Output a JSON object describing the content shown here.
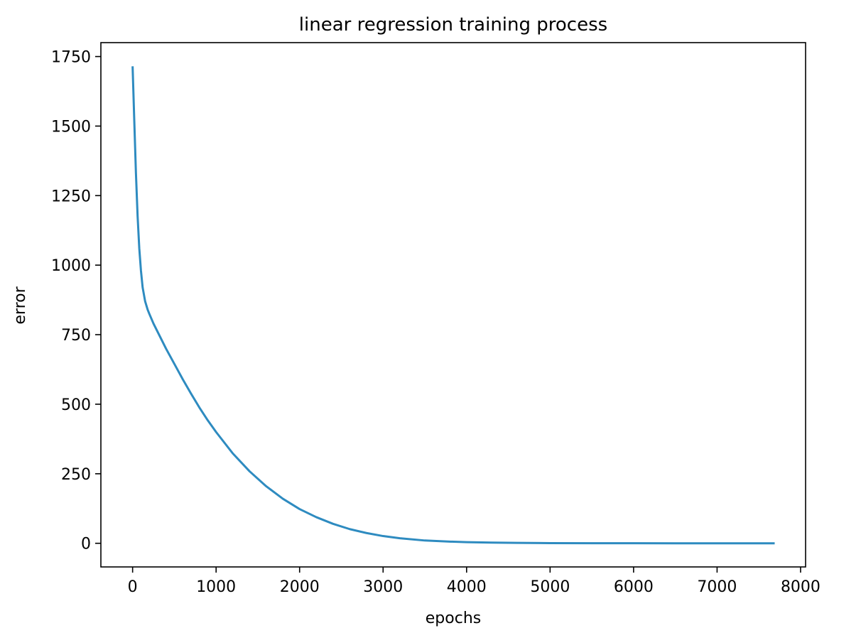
{
  "chart_data": {
    "type": "line",
    "title": "linear regression training process",
    "xlabel": "epochs",
    "ylabel": "error",
    "xlim": [
      -380,
      8060
    ],
    "ylim": [
      -85,
      1800
    ],
    "xticks": [
      0,
      1000,
      2000,
      3000,
      4000,
      5000,
      6000,
      7000,
      8000
    ],
    "yticks": [
      0,
      250,
      500,
      750,
      1000,
      1250,
      1500,
      1750
    ],
    "xtick_labels": [
      "0",
      "1000",
      "2000",
      "3000",
      "4000",
      "5000",
      "6000",
      "7000",
      "8000"
    ],
    "ytick_labels": [
      "0",
      "250",
      "500",
      "750",
      "1000",
      "1250",
      "1500",
      "1750"
    ],
    "grid": false,
    "legend": "none",
    "line_color": "#2e8bc0",
    "series": [
      {
        "x": [
          0,
          20,
          40,
          60,
          80,
          100,
          120,
          150,
          180,
          200,
          250,
          300,
          400,
          500,
          600,
          700,
          800,
          900,
          1000,
          1200,
          1400,
          1600,
          1800,
          2000,
          2200,
          2400,
          2600,
          2800,
          3000,
          3200,
          3500,
          3800,
          4000,
          4300,
          4600,
          5000,
          5500,
          6000,
          6500,
          7000,
          7500,
          7690
        ],
        "y": [
          1715,
          1520,
          1330,
          1175,
          1060,
          980,
          920,
          870,
          840,
          825,
          790,
          760,
          700,
          645,
          590,
          538,
          488,
          442,
          400,
          323,
          259,
          205,
          160,
          123,
          94,
          70,
          51,
          37,
          26,
          18,
          10,
          6,
          4,
          2.5,
          1.5,
          0.7,
          0.3,
          0.1,
          0.05,
          0.02,
          0.01,
          0.0
        ]
      }
    ]
  }
}
